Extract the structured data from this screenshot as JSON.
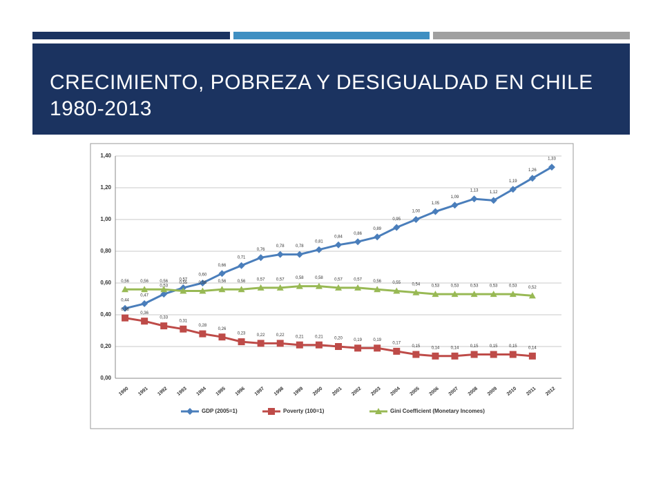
{
  "slide": {
    "title": "CRECIMIENTO, POBREZA Y DESIGUALDAD EN CHILE 1980-2013"
  },
  "chart_data": {
    "type": "line",
    "categories": [
      "1990",
      "1991",
      "1992",
      "1993",
      "1994",
      "1995",
      "1996",
      "1997",
      "1998",
      "1999",
      "2000",
      "2001",
      "2002",
      "2003",
      "2004",
      "2005",
      "2006",
      "2007",
      "2008",
      "2009",
      "2010",
      "2011",
      "2012"
    ],
    "series": [
      {
        "name": "GDP (2005=1)",
        "color": "#4a7ebb",
        "marker": "diamond",
        "label_side": "above",
        "values": [
          0.44,
          0.47,
          0.53,
          0.57,
          0.6,
          0.66,
          0.71,
          0.76,
          0.78,
          0.78,
          0.81,
          0.84,
          0.86,
          0.89,
          0.95,
          1.0,
          1.05,
          1.09,
          1.13,
          1.12,
          1.19,
          1.26,
          1.33
        ],
        "value_labels": [
          "0,44",
          "0,47",
          "0,53",
          "0,57",
          "0,60",
          "0,66",
          "0,71",
          "0,76",
          "0,78",
          "0,78",
          "0,81",
          "0,84",
          "0,86",
          "0,89",
          "0,95",
          "1,00",
          "1,05",
          "1,09",
          "1,13",
          "1,12",
          "1,19",
          "1,26",
          "1,33"
        ]
      },
      {
        "name": "Poverty (100=1)",
        "color": "#be4b48",
        "marker": "square",
        "label_side": "above",
        "values": [
          0.38,
          0.36,
          0.33,
          0.31,
          0.28,
          0.26,
          0.23,
          0.22,
          0.22,
          0.21,
          0.21,
          0.2,
          0.19,
          0.19,
          0.17,
          0.15,
          0.14,
          0.14,
          0.15,
          0.15,
          0.15,
          0.14,
          null
        ],
        "value_labels": [
          "0,38",
          "0,36",
          "0,33",
          "0,31",
          "0,28",
          "0,26",
          "0,23",
          "0,22",
          "0,22",
          "0,21",
          "0,21",
          "0,20",
          "0,19",
          "0,19",
          "0,17",
          "0,15",
          "0,14",
          "0,14",
          "0,15",
          "0,15",
          "0,15",
          "0,14",
          null
        ]
      },
      {
        "name": "Gini Coefficient (Monetary Incomes)",
        "color": "#98b954",
        "marker": "triangle",
        "label_side": "above",
        "values": [
          0.56,
          0.56,
          0.56,
          0.55,
          0.55,
          0.56,
          0.56,
          0.57,
          0.57,
          0.58,
          0.58,
          0.57,
          0.57,
          0.56,
          0.55,
          0.54,
          0.53,
          0.53,
          0.53,
          0.53,
          0.53,
          0.52,
          null
        ],
        "value_labels": [
          "0,56",
          "0,56",
          "0,56",
          "0,55",
          "0,55",
          "0,56",
          "0,56",
          "0,57",
          "0,57",
          "0,58",
          "0,58",
          "0,57",
          "0,57",
          "0,56",
          "0,55",
          "0,54",
          "0,53",
          "0,53",
          "0,53",
          "0,53",
          "0,53",
          "0,52",
          null
        ]
      }
    ],
    "ylim": [
      0,
      1.4
    ],
    "yticks": [
      {
        "value": 0,
        "label": "0,00"
      },
      {
        "value": 0.2,
        "label": "0,20"
      },
      {
        "value": 0.4,
        "label": "0,40"
      },
      {
        "value": 0.6,
        "label": "0,60"
      },
      {
        "value": 0.8,
        "label": "0,80"
      },
      {
        "value": 1.0,
        "label": "1,00"
      },
      {
        "value": 1.2,
        "label": "1,20"
      },
      {
        "value": 1.4,
        "label": "1,40"
      }
    ],
    "grid": true,
    "legend": "bottom"
  }
}
